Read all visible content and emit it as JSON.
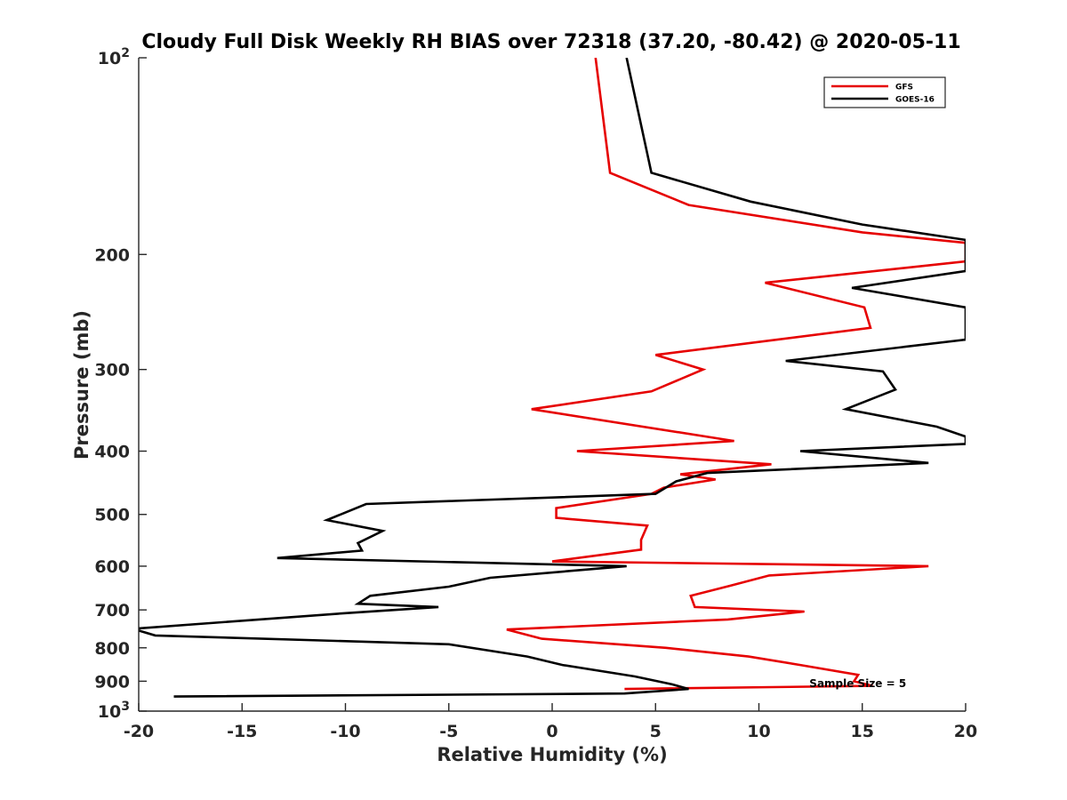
{
  "chart_data": {
    "type": "line",
    "title": "Cloudy Full Disk Weekly RH BIAS over 72318 (37.20, -80.42) @ 2020-05-11",
    "xlabel": "Relative Humidity (%)",
    "ylabel": "Pressure (mb)",
    "xlim": [
      -20,
      20
    ],
    "ylim": [
      100,
      1000
    ],
    "yscale": "log",
    "y_reversed": true,
    "grid": false,
    "legend_position": "top-right",
    "xticks": [
      -20,
      -15,
      -10,
      -5,
      0,
      5,
      10,
      15,
      20
    ],
    "xtick_labels": [
      "-20",
      "-15",
      "-10",
      "-5",
      "0",
      "5",
      "10",
      "15",
      "20"
    ],
    "yticks": [
      100,
      200,
      300,
      400,
      500,
      600,
      700,
      800,
      900,
      1000
    ],
    "ytick_labels": [
      {
        "base": "10",
        "exp": "2"
      },
      {
        "base": "200",
        "exp": ""
      },
      {
        "base": "300",
        "exp": ""
      },
      {
        "base": "400",
        "exp": ""
      },
      {
        "base": "500",
        "exp": ""
      },
      {
        "base": "600",
        "exp": ""
      },
      {
        "base": "700",
        "exp": ""
      },
      {
        "base": "800",
        "exp": ""
      },
      {
        "base": "900",
        "exp": ""
      },
      {
        "base": "10",
        "exp": "3"
      }
    ],
    "series": [
      {
        "name": "GFS",
        "color": "#e60000",
        "points": [
          [
            2.1,
            100
          ],
          [
            2.8,
            150
          ],
          [
            6.6,
            168
          ],
          [
            15,
            185
          ],
          [
            20,
            192
          ],
          [
            20,
            205
          ],
          [
            10.3,
            221
          ],
          [
            15.1,
            241
          ],
          [
            15.4,
            259
          ],
          [
            5.0,
            285
          ],
          [
            7.3,
            300
          ],
          [
            4.8,
            324
          ],
          [
            -1.0,
            345
          ],
          [
            8.8,
            386
          ],
          [
            1.2,
            400
          ],
          [
            10.6,
            419
          ],
          [
            6.2,
            434
          ],
          [
            7.9,
            442
          ],
          [
            5.4,
            455
          ],
          [
            4.8,
            465
          ],
          [
            0.2,
            489
          ],
          [
            0.2,
            506
          ],
          [
            4.6,
            520
          ],
          [
            4.3,
            547
          ],
          [
            4.3,
            566
          ],
          [
            0,
            590
          ],
          [
            18.2,
            600
          ],
          [
            10.5,
            620
          ],
          [
            8.6,
            643
          ],
          [
            6.7,
            666
          ],
          [
            6.9,
            693
          ],
          [
            12.2,
            704
          ],
          [
            8.5,
            724
          ],
          [
            -2.2,
            750
          ],
          [
            -0.5,
            775
          ],
          [
            5.5,
            800
          ],
          [
            9.5,
            825
          ],
          [
            12,
            850
          ],
          [
            14.8,
            880
          ],
          [
            14.6,
            900
          ],
          [
            15.5,
            915
          ],
          [
            3.5,
            925
          ]
        ]
      },
      {
        "name": "GOES-16",
        "color": "#000000",
        "points": [
          [
            3.6,
            100
          ],
          [
            4.8,
            150
          ],
          [
            9.6,
            166
          ],
          [
            15,
            180
          ],
          [
            20,
            190
          ],
          [
            20,
            212
          ],
          [
            14.5,
            225
          ],
          [
            20,
            241
          ],
          [
            20,
            270
          ],
          [
            11.3,
            291
          ],
          [
            16,
            302
          ],
          [
            16.6,
            322
          ],
          [
            14.2,
            345
          ],
          [
            18.6,
            367
          ],
          [
            20,
            380
          ],
          [
            20,
            390
          ],
          [
            12,
            400
          ],
          [
            18.2,
            417
          ],
          [
            7.5,
            432
          ],
          [
            6,
            445
          ],
          [
            5,
            465
          ],
          [
            -9,
            482
          ],
          [
            -10.9,
            510
          ],
          [
            -8.2,
            530
          ],
          [
            -9.4,
            553
          ],
          [
            -9.2,
            568
          ],
          [
            -13.3,
            583
          ],
          [
            3.6,
            600
          ],
          [
            -3,
            625
          ],
          [
            -5,
            645
          ],
          [
            -8.8,
            666
          ],
          [
            -9.4,
            685
          ],
          [
            -5.5,
            693
          ],
          [
            -10,
            708
          ],
          [
            -20,
            747
          ],
          [
            -20,
            753
          ],
          [
            -19.2,
            766
          ],
          [
            -5,
            790
          ],
          [
            -1.2,
            825
          ],
          [
            0.5,
            850
          ],
          [
            4,
            885
          ],
          [
            5.8,
            910
          ],
          [
            6.6,
            925
          ],
          [
            3.5,
            940
          ],
          [
            -18.3,
            950
          ]
        ]
      }
    ],
    "legend": [
      "GFS",
      "GOES-16"
    ],
    "annotations": [
      {
        "text": "Sample Size = 5",
        "x": 15,
        "y": 905
      }
    ]
  }
}
